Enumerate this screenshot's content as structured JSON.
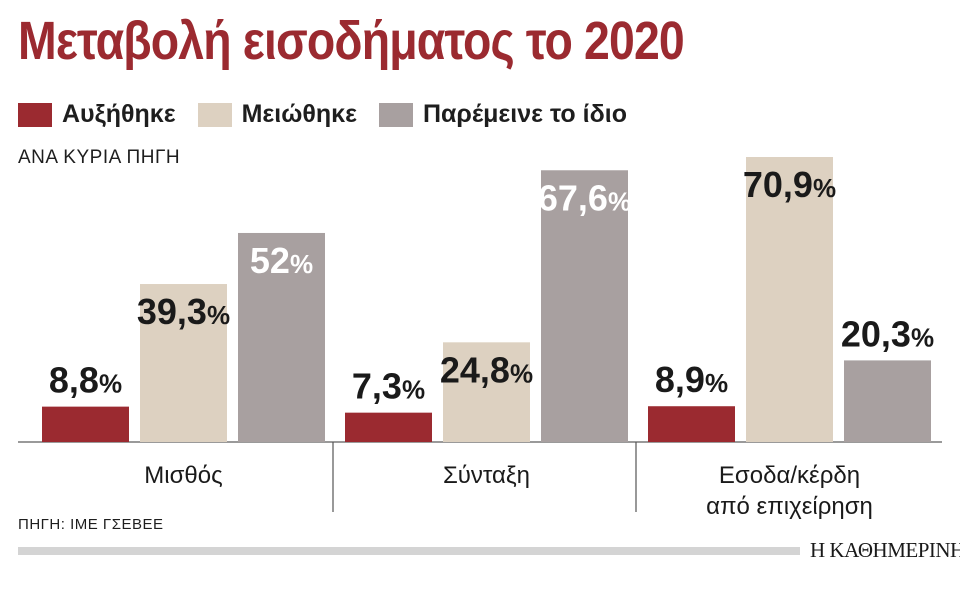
{
  "title": "Μεταβολή εισοδήματος το 2020",
  "subtitle": "ΑΝΑ ΚΥΡΙΑ ΠΗΓΗ",
  "source": "ΠΗΓΗ: ΙΜΕ ΓΣΕΒΕΕ",
  "brand": "Η ΚΑΘΗΜΕΡΙΝΗ",
  "legend": [
    {
      "label": "Αυξήθηκε",
      "color": "#9b2a30"
    },
    {
      "label": "Μειώθηκε",
      "color": "#ddd1c1"
    },
    {
      "label": "Παρέμεινε το ίδιο",
      "color": "#a8a0a0"
    }
  ],
  "chart_data": {
    "type": "bar",
    "categories": [
      [
        "Μισθός"
      ],
      [
        "Σύνταξη"
      ],
      [
        "Εσοδα/κέρδη",
        "από επιχείρηση"
      ]
    ],
    "series": [
      {
        "name": "Αυξήθηκε",
        "values": [
          8.8,
          7.3,
          8.9
        ],
        "labels": [
          "8,8",
          "7,3",
          "8,9"
        ],
        "color": "#9b2a30"
      },
      {
        "name": "Μειώθηκε",
        "values": [
          39.3,
          24.8,
          70.9
        ],
        "labels": [
          "39,3",
          "24,8",
          "70,9"
        ],
        "color": "#ddd1c1"
      },
      {
        "name": "Παρέμεινε το ίδιο",
        "values": [
          52,
          67.6,
          20.3
        ],
        "labels": [
          "52",
          "67,6",
          "20,3"
        ],
        "color": "#a8a0a0"
      }
    ],
    "unit_suffix": "%",
    "ylim": [
      0,
      70.9
    ],
    "grid": false,
    "legend_position": "top-left"
  }
}
